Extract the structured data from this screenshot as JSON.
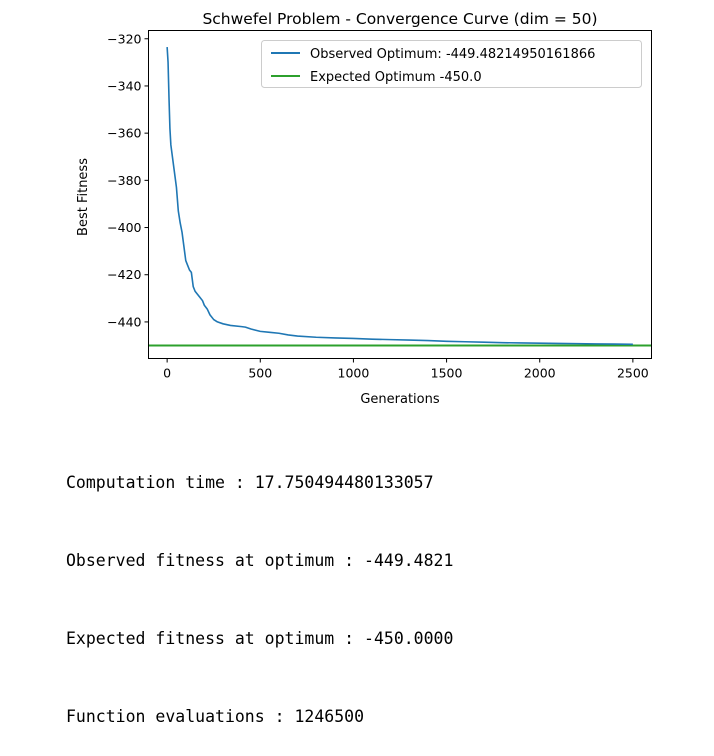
{
  "chart_data": {
    "type": "line",
    "title": "Schwefel Problem - Convergence Curve (dim = 50)",
    "xlabel": "Generations",
    "ylabel": "Best Fitness",
    "xlim": [
      -100,
      2600
    ],
    "ylim": [
      -455.5,
      -316.5
    ],
    "xticks": [
      0,
      500,
      1000,
      1500,
      2000,
      2500
    ],
    "yticks": [
      -320,
      -340,
      -360,
      -380,
      -400,
      -420,
      -440
    ],
    "grid": false,
    "legend_position": "upper right",
    "series": [
      {
        "name": "Observed Optimum: -449.48214950161866",
        "color": "#1f77b4",
        "x": [
          0,
          5,
          10,
          15,
          20,
          30,
          40,
          50,
          60,
          70,
          80,
          90,
          100,
          110,
          120,
          130,
          140,
          150,
          160,
          175,
          190,
          200,
          215,
          230,
          250,
          270,
          300,
          340,
          400,
          420,
          450,
          500,
          550,
          600,
          650,
          700,
          800,
          900,
          1000,
          1100,
          1200,
          1300,
          1400,
          1500,
          1600,
          1700,
          1800,
          1900,
          2000,
          2100,
          2200,
          2300,
          2400,
          2500
        ],
        "y": [
          -323.5,
          -330,
          -345,
          -358,
          -365,
          -371,
          -377,
          -383,
          -393,
          -398,
          -402,
          -408,
          -414,
          -416,
          -418,
          -419,
          -425,
          -427,
          -428,
          -429.5,
          -431,
          -433,
          -434.5,
          -437,
          -439,
          -440,
          -440.8,
          -441.5,
          -442,
          -442.2,
          -443,
          -444,
          -444.4,
          -444.8,
          -445.5,
          -446,
          -446.5,
          -446.8,
          -447,
          -447.3,
          -447.5,
          -447.7,
          -447.9,
          -448.2,
          -448.4,
          -448.6,
          -448.8,
          -448.9,
          -449.0,
          -449.1,
          -449.2,
          -449.3,
          -449.4,
          -449.48
        ]
      },
      {
        "name": "Expected Optimum -450.0",
        "color": "#2ca02c",
        "y_constant": -450.0
      }
    ]
  },
  "output": {
    "lines": [
      "Computation time : 17.750494480133057",
      "Observed fitness at optimum : -449.4821",
      "Expected fitness at optimum : -450.0000",
      "Function evaluations : 1246500"
    ]
  }
}
